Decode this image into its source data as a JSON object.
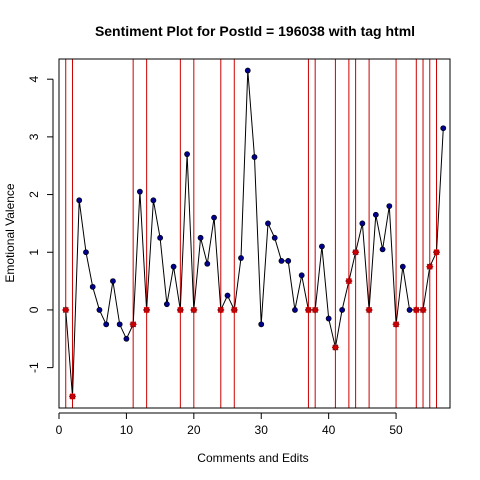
{
  "chart_data": {
    "type": "line",
    "title": "Sentiment Plot for PostId =  196038  with tag  html",
    "xlabel": "Comments and Edits",
    "ylabel": "Emotional Valence",
    "xlim": [
      0,
      58
    ],
    "ylim": [
      -1.7,
      4.35
    ],
    "x_ticks": [
      "0",
      "10",
      "20",
      "30",
      "40",
      "50"
    ],
    "y_ticks": [
      "-1",
      "0",
      "1",
      "2",
      "3",
      "4"
    ],
    "grid": false,
    "series": [
      {
        "values": [
          [
            1,
            0
          ],
          [
            2,
            -1.5
          ],
          [
            3,
            1.9
          ],
          [
            4,
            1
          ],
          [
            5,
            0.4
          ],
          [
            6,
            0
          ],
          [
            7,
            -0.25
          ],
          [
            8,
            0.5
          ],
          [
            9,
            -0.25
          ],
          [
            10,
            -0.5
          ],
          [
            11,
            -0.25
          ],
          [
            12,
            2.05
          ],
          [
            13,
            0
          ],
          [
            14,
            1.9
          ],
          [
            15,
            1.25
          ],
          [
            16,
            0.1
          ],
          [
            17,
            0.75
          ],
          [
            18,
            0
          ],
          [
            19,
            2.7
          ],
          [
            20,
            0
          ],
          [
            21,
            1.25
          ],
          [
            22,
            0.8
          ],
          [
            23,
            1.6
          ],
          [
            24,
            0
          ],
          [
            25,
            0.25
          ],
          [
            26,
            0
          ],
          [
            27,
            0.9
          ],
          [
            28,
            4.15
          ],
          [
            29,
            2.65
          ],
          [
            30,
            -0.25
          ],
          [
            31,
            1.5
          ],
          [
            32,
            1.25
          ],
          [
            33,
            0.85
          ],
          [
            34,
            0.85
          ],
          [
            35,
            0
          ],
          [
            36,
            0.6
          ],
          [
            37,
            0
          ],
          [
            38,
            0
          ],
          [
            39,
            1.1
          ],
          [
            40,
            -0.15
          ],
          [
            41,
            -0.65
          ],
          [
            42,
            0
          ],
          [
            43,
            0.5
          ],
          [
            44,
            1
          ],
          [
            45,
            1.5
          ],
          [
            46,
            0
          ],
          [
            47,
            1.65
          ],
          [
            48,
            1.05
          ],
          [
            49,
            1.8
          ],
          [
            50,
            -0.25
          ],
          [
            51,
            0.75
          ],
          [
            52,
            0
          ],
          [
            53,
            0
          ],
          [
            54,
            0
          ],
          [
            55,
            0.75
          ],
          [
            56,
            1
          ],
          [
            57,
            3.15
          ]
        ]
      }
    ],
    "edit_markers": [
      1,
      2,
      11,
      13,
      18,
      20,
      24,
      26,
      37,
      38,
      41,
      43,
      44,
      46,
      50,
      53,
      54,
      55,
      56
    ],
    "colors": {
      "line": "#000000",
      "point": "#00008b",
      "edit_line": "#cc0000",
      "edit_marker": "#cc0000"
    }
  }
}
